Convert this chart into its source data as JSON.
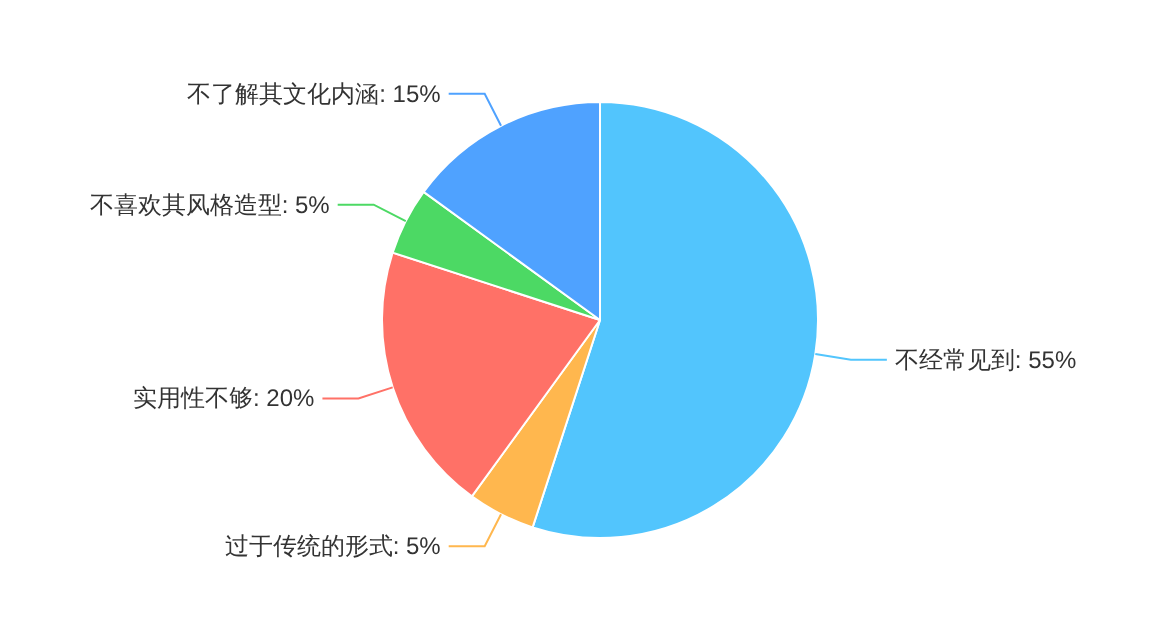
{
  "chart_data": {
    "type": "pie",
    "categories": [
      "不经常见到",
      "过于传统的形式",
      "实用性不够",
      "不喜欢其风格造型",
      "不了解其文化内涵"
    ],
    "values": [
      55,
      5,
      20,
      5,
      15
    ],
    "value_labels": [
      "55%",
      "5%",
      "20%",
      "5%",
      "15%"
    ],
    "colors": [
      "#52c5fd",
      "#ffb74e",
      "#ff7167",
      "#4cd964",
      "#4fa2ff"
    ],
    "legend": false
  }
}
